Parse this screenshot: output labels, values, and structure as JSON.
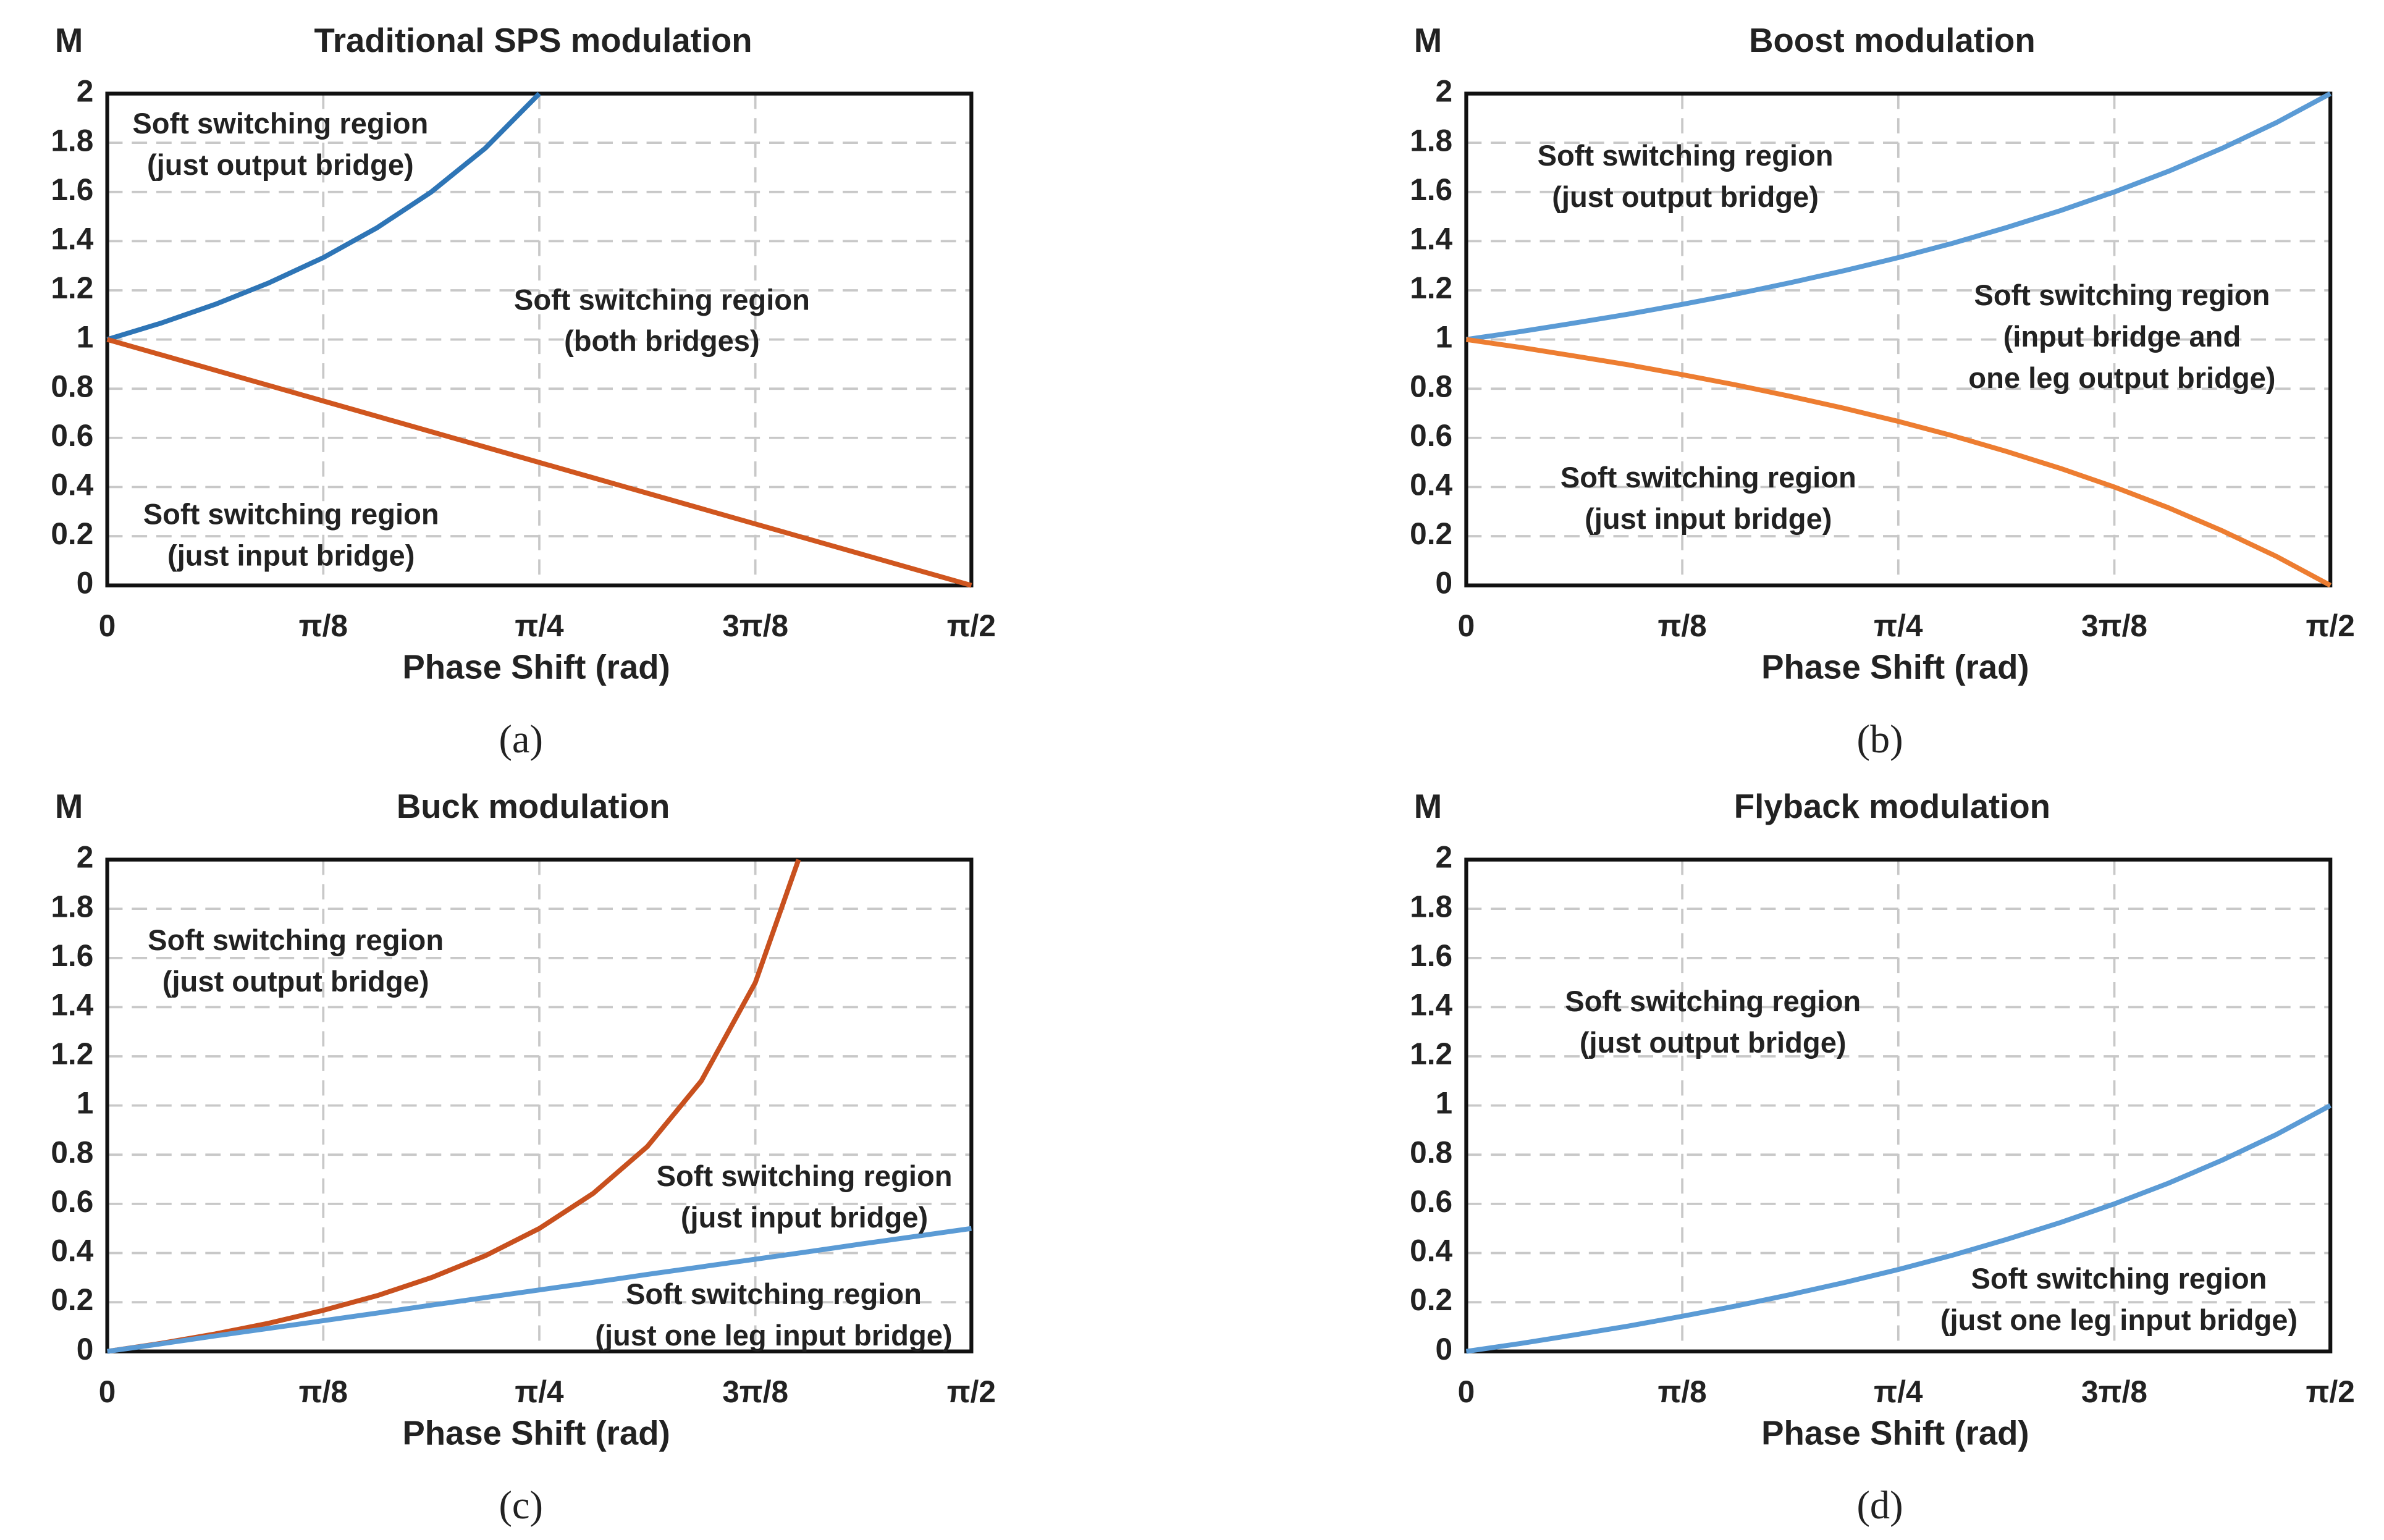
{
  "chart_data": [
    {
      "type": "line",
      "title": "Traditional SPS modulation",
      "ylabel": "M",
      "xlabel": "Phase Shift (rad)",
      "panel_label": "(a)",
      "x": [
        0,
        0.0982,
        0.1963,
        0.2945,
        0.3927,
        0.4909,
        0.589,
        0.6872,
        0.7854,
        0.8836,
        0.9817,
        1.0799,
        1.1781,
        1.2763,
        1.3744,
        1.4726,
        1.5708
      ],
      "series": [
        {
          "color": "#2e75b6",
          "values": [
            1,
            1.067,
            1.143,
            1.231,
            1.333,
            1.455,
            1.6,
            1.778,
            2,
            null,
            null,
            null,
            null,
            null,
            null,
            null,
            null
          ]
        },
        {
          "color": "#d0561f",
          "values": [
            1,
            0.9375,
            0.875,
            0.8125,
            0.75,
            0.6875,
            0.625,
            0.5625,
            0.5,
            0.4375,
            0.375,
            0.3125,
            0.25,
            0.1875,
            0.125,
            0.0625,
            0
          ]
        }
      ],
      "xlim": [
        0,
        1.5708
      ],
      "ylim": [
        0,
        2
      ],
      "xticks": [
        0,
        {
          "value": 0.3927,
          "label": "π/8"
        },
        {
          "value": 0.7854,
          "label": "π/4"
        },
        {
          "value": 1.1781,
          "label": "3π/8"
        },
        {
          "value": 1.5708,
          "label": "π/2"
        }
      ],
      "yticks": [
        0,
        0.2,
        0.4,
        0.6,
        0.8,
        1,
        1.2,
        1.4,
        1.6,
        1.8,
        2
      ],
      "grid": true,
      "annotations": [
        [
          "Soft switching region",
          "(just output bridge)"
        ],
        [
          "Soft switching region",
          "(both bridges)"
        ],
        [
          "Soft switching region",
          "(just input bridge)"
        ]
      ]
    },
    {
      "type": "line",
      "title": "Boost modulation",
      "ylabel": "M",
      "xlabel": "Phase Shift (rad)",
      "panel_label": "(b)",
      "x": [
        0,
        0.0982,
        0.1963,
        0.2945,
        0.3927,
        0.4909,
        0.589,
        0.6872,
        0.7854,
        0.8836,
        0.9817,
        1.0799,
        1.1781,
        1.2763,
        1.3744,
        1.4726,
        1.5708
      ],
      "series": [
        {
          "color": "#5b9bd5",
          "values": [
            1,
            1.032,
            1.067,
            1.103,
            1.143,
            1.185,
            1.231,
            1.28,
            1.333,
            1.391,
            1.455,
            1.524,
            1.6,
            1.684,
            1.778,
            1.882,
            2
          ]
        },
        {
          "color": "#ed7d31",
          "values": [
            1,
            0.968,
            0.933,
            0.897,
            0.857,
            0.815,
            0.769,
            0.72,
            0.667,
            0.609,
            0.545,
            0.476,
            0.4,
            0.316,
            0.222,
            0.118,
            0
          ]
        }
      ],
      "xlim": [
        0,
        1.5708
      ],
      "ylim": [
        0,
        2
      ],
      "xticks": [
        0,
        {
          "value": 0.3927,
          "label": "π/8"
        },
        {
          "value": 0.7854,
          "label": "π/4"
        },
        {
          "value": 1.1781,
          "label": "3π/8"
        },
        {
          "value": 1.5708,
          "label": "π/2"
        }
      ],
      "yticks": [
        0,
        0.2,
        0.4,
        0.6,
        0.8,
        1,
        1.2,
        1.4,
        1.6,
        1.8,
        2
      ],
      "grid": true,
      "annotations": [
        [
          "Soft switching region",
          "(just output bridge)"
        ],
        [
          "Soft switching region",
          "(input bridge and",
          "one leg output bridge)"
        ],
        [
          "Soft switching region",
          "(just input bridge)"
        ]
      ]
    },
    {
      "type": "line",
      "title": "Buck modulation",
      "ylabel": "M",
      "xlabel": "Phase Shift (rad)",
      "panel_label": "(c)",
      "x": [
        0,
        0.0982,
        0.1963,
        0.2945,
        0.3927,
        0.4909,
        0.589,
        0.6872,
        0.7854,
        0.8836,
        0.9817,
        1.0799,
        1.1781,
        1.2763,
        1.3744,
        1.4726,
        1.5708
      ],
      "series": [
        {
          "color": "#c8501e",
          "x": [
            0,
            0.0982,
            0.1963,
            0.2945,
            0.3927,
            0.4909,
            0.589,
            0.6872,
            0.7854,
            0.8836,
            0.9817,
            1.0799,
            1.1781,
            1.2566
          ],
          "values": [
            0,
            0.033,
            0.071,
            0.115,
            0.167,
            0.227,
            0.3,
            0.389,
            0.5,
            0.643,
            0.833,
            1.1,
            1.5,
            2
          ]
        },
        {
          "color": "#5b9bd5",
          "values": [
            0,
            0.031,
            0.063,
            0.094,
            0.125,
            0.156,
            0.188,
            0.219,
            0.25,
            0.281,
            0.313,
            0.344,
            0.375,
            0.406,
            0.438,
            0.469,
            0.5
          ]
        }
      ],
      "xlim": [
        0,
        1.5708
      ],
      "ylim": [
        0,
        2
      ],
      "xticks": [
        0,
        {
          "value": 0.3927,
          "label": "π/8"
        },
        {
          "value": 0.7854,
          "label": "π/4"
        },
        {
          "value": 1.1781,
          "label": "3π/8"
        },
        {
          "value": 1.5708,
          "label": "π/2"
        }
      ],
      "yticks": [
        0,
        0.2,
        0.4,
        0.6,
        0.8,
        1,
        1.2,
        1.4,
        1.6,
        1.8,
        2
      ],
      "grid": true,
      "annotations": [
        [
          "Soft switching region",
          "(just output bridge)"
        ],
        [
          "Soft switching region",
          "(just input bridge)"
        ],
        [
          "Soft switching region",
          "(just one leg input bridge)"
        ]
      ]
    },
    {
      "type": "line",
      "title": "Flyback  modulation",
      "ylabel": "M",
      "xlabel": "Phase Shift (rad)",
      "panel_label": "(d)",
      "x": [
        0,
        0.0982,
        0.1963,
        0.2945,
        0.3927,
        0.4909,
        0.589,
        0.6872,
        0.7854,
        0.8836,
        0.9817,
        1.0799,
        1.1781,
        1.2763,
        1.3744,
        1.4726,
        1.5708
      ],
      "series": [
        {
          "color": "#5b9bd5",
          "values": [
            0,
            0.032,
            0.067,
            0.103,
            0.143,
            0.185,
            0.231,
            0.28,
            0.333,
            0.391,
            0.455,
            0.524,
            0.6,
            0.684,
            0.778,
            0.882,
            1
          ]
        }
      ],
      "xlim": [
        0,
        1.5708
      ],
      "ylim": [
        0,
        2
      ],
      "xticks": [
        0,
        {
          "value": 0.3927,
          "label": "π/8"
        },
        {
          "value": 0.7854,
          "label": "π/4"
        },
        {
          "value": 1.1781,
          "label": "3π/8"
        },
        {
          "value": 1.5708,
          "label": "π/2"
        }
      ],
      "yticks": [
        0,
        0.2,
        0.4,
        0.6,
        0.8,
        1,
        1.2,
        1.4,
        1.6,
        1.8,
        2
      ],
      "grid": true,
      "annotations": [
        [
          "Soft switching region",
          "(just output bridge)"
        ],
        [
          "Soft switching region",
          "(just one leg input bridge)"
        ]
      ]
    }
  ]
}
